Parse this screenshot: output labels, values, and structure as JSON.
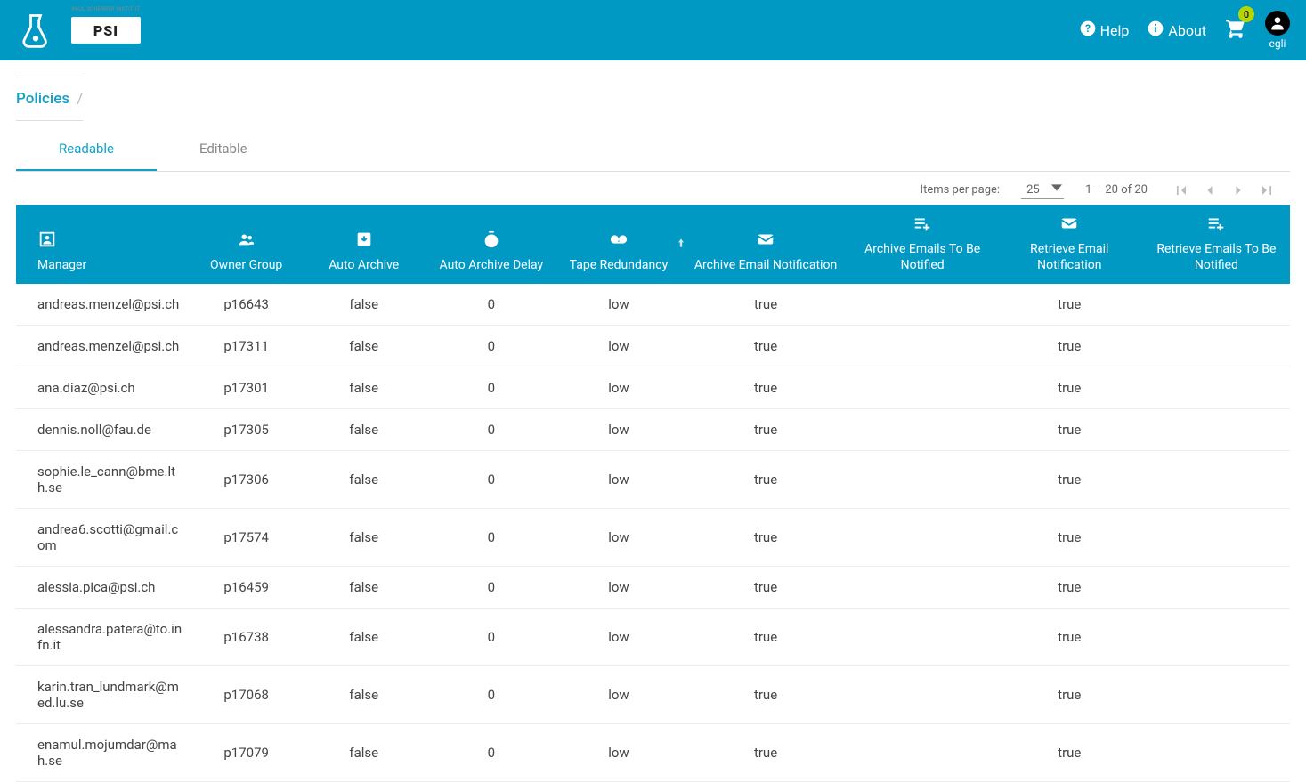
{
  "colors": {
    "primary": "#0099c4",
    "badge": "#b6d600"
  },
  "header": {
    "logo1_label": "SciCat",
    "psi_label": "PSI",
    "help_label": "Help",
    "about_label": "About",
    "cart_count": "0",
    "user_name": "egli"
  },
  "breadcrumb": {
    "current": "Policies",
    "sep": "/"
  },
  "tabs": {
    "readable": "Readable",
    "editable": "Editable"
  },
  "paginator": {
    "items_per_page_label": "Items per page:",
    "items_per_page_value": "25",
    "range_label": "1 – 20 of 20"
  },
  "columns": {
    "manager": "Manager",
    "owner_group": "Owner Group",
    "auto_archive": "Auto Archive",
    "auto_archive_delay": "Auto Archive Delay",
    "tape_redundancy": "Tape Redundancy",
    "archive_email_notification": "Archive Email Notification",
    "archive_emails_to_be_notified": "Archive Emails To Be Notified",
    "retrieve_email_notification": "Retrieve Email Notification",
    "retrieve_emails_to_be_notified": "Retrieve Emails To Be Notified"
  },
  "rows": [
    {
      "manager": "andreas.menzel@psi.ch",
      "owner": "p16643",
      "auto_archive": "false",
      "delay": "0",
      "tape": "low",
      "aen": "true",
      "aeb": "",
      "ren": "true",
      "reb": ""
    },
    {
      "manager": "andreas.menzel@psi.ch",
      "owner": "p17311",
      "auto_archive": "false",
      "delay": "0",
      "tape": "low",
      "aen": "true",
      "aeb": "",
      "ren": "true",
      "reb": ""
    },
    {
      "manager": "ana.diaz@psi.ch",
      "owner": "p17301",
      "auto_archive": "false",
      "delay": "0",
      "tape": "low",
      "aen": "true",
      "aeb": "",
      "ren": "true",
      "reb": ""
    },
    {
      "manager": "dennis.noll@fau.de",
      "owner": "p17305",
      "auto_archive": "false",
      "delay": "0",
      "tape": "low",
      "aen": "true",
      "aeb": "",
      "ren": "true",
      "reb": ""
    },
    {
      "manager": "sophie.le_cann@bme.lth.se",
      "owner": "p17306",
      "auto_archive": "false",
      "delay": "0",
      "tape": "low",
      "aen": "true",
      "aeb": "",
      "ren": "true",
      "reb": ""
    },
    {
      "manager": "andrea6.scotti@gmail.com",
      "owner": "p17574",
      "auto_archive": "false",
      "delay": "0",
      "tape": "low",
      "aen": "true",
      "aeb": "",
      "ren": "true",
      "reb": ""
    },
    {
      "manager": "alessia.pica@psi.ch",
      "owner": "p16459",
      "auto_archive": "false",
      "delay": "0",
      "tape": "low",
      "aen": "true",
      "aeb": "",
      "ren": "true",
      "reb": ""
    },
    {
      "manager": "alessandra.patera@to.infn.it",
      "owner": "p16738",
      "auto_archive": "false",
      "delay": "0",
      "tape": "low",
      "aen": "true",
      "aeb": "",
      "ren": "true",
      "reb": ""
    },
    {
      "manager": "karin.tran_lundmark@med.lu.se",
      "owner": "p17068",
      "auto_archive": "false",
      "delay": "0",
      "tape": "low",
      "aen": "true",
      "aeb": "",
      "ren": "true",
      "reb": ""
    },
    {
      "manager": "enamul.mojumdar@mah.se",
      "owner": "p17079",
      "auto_archive": "false",
      "delay": "0",
      "tape": "low",
      "aen": "true",
      "aeb": "",
      "ren": "true",
      "reb": ""
    }
  ]
}
